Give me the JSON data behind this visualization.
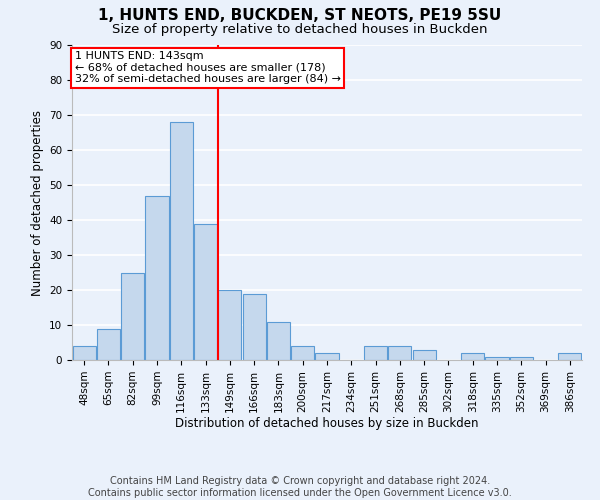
{
  "title": "1, HUNTS END, BUCKDEN, ST NEOTS, PE19 5SU",
  "subtitle": "Size of property relative to detached houses in Buckden",
  "xlabel": "Distribution of detached houses by size in Buckden",
  "ylabel": "Number of detached properties",
  "bins": [
    "48sqm",
    "65sqm",
    "82sqm",
    "99sqm",
    "116sqm",
    "133sqm",
    "149sqm",
    "166sqm",
    "183sqm",
    "200sqm",
    "217sqm",
    "234sqm",
    "251sqm",
    "268sqm",
    "285sqm",
    "302sqm",
    "318sqm",
    "335sqm",
    "352sqm",
    "369sqm",
    "386sqm"
  ],
  "bar_heights": [
    4,
    9,
    25,
    47,
    68,
    39,
    20,
    19,
    11,
    4,
    2,
    0,
    4,
    4,
    3,
    0,
    2,
    1,
    1,
    0,
    2
  ],
  "bar_color": "#c5d8ed",
  "bar_edge_color": "#5b9bd5",
  "vline_x": 5.5,
  "vline_color": "red",
  "annotation_text": "1 HUNTS END: 143sqm\n← 68% of detached houses are smaller (178)\n32% of semi-detached houses are larger (84) →",
  "annotation_box_color": "white",
  "annotation_box_edge_color": "red",
  "ylim": [
    0,
    90
  ],
  "yticks": [
    0,
    10,
    20,
    30,
    40,
    50,
    60,
    70,
    80,
    90
  ],
  "footer": "Contains HM Land Registry data © Crown copyright and database right 2024.\nContains public sector information licensed under the Open Government Licence v3.0.",
  "bg_color": "#eaf1fb",
  "plot_bg_color": "#eaf1fb",
  "grid_color": "white",
  "title_fontsize": 11,
  "subtitle_fontsize": 9.5,
  "label_fontsize": 8.5,
  "tick_fontsize": 7.5,
  "footer_fontsize": 7.0,
  "annotation_fontsize": 8.0
}
